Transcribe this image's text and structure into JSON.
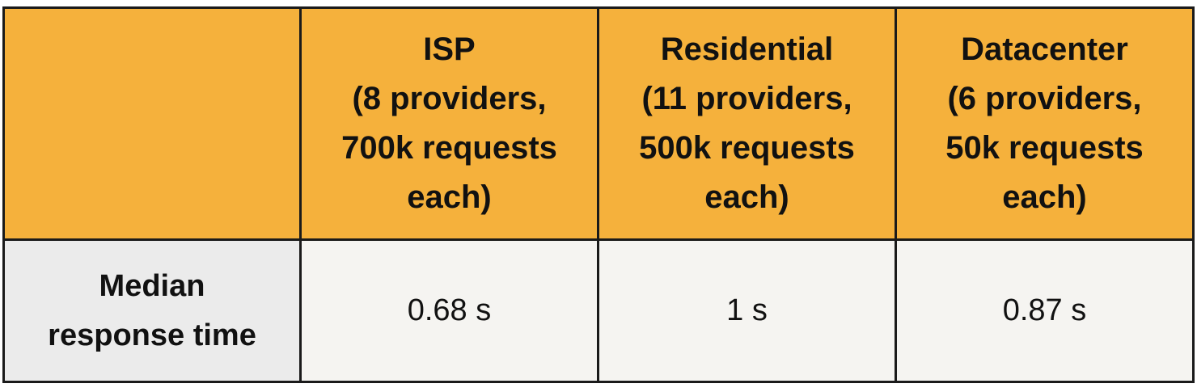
{
  "table": {
    "corner": "",
    "columns": [
      {
        "lines": [
          "ISP",
          "(8 providers,",
          "700k requests",
          "each)"
        ]
      },
      {
        "lines": [
          "Residential",
          "(11 providers,",
          "500k requests",
          "each)"
        ]
      },
      {
        "lines": [
          "Datacenter",
          "(6 providers,",
          "50k requests",
          "each)"
        ]
      }
    ],
    "rows": [
      {
        "label_lines": [
          "Median",
          "response time"
        ],
        "values": [
          "0.68 s",
          "1 s",
          "0.87 s"
        ]
      }
    ]
  },
  "colors": {
    "header_bg": "#f5b13c",
    "row_label_bg": "#ebebeb",
    "cell_bg": "#f5f4f1",
    "border": "#1a1a1a"
  }
}
